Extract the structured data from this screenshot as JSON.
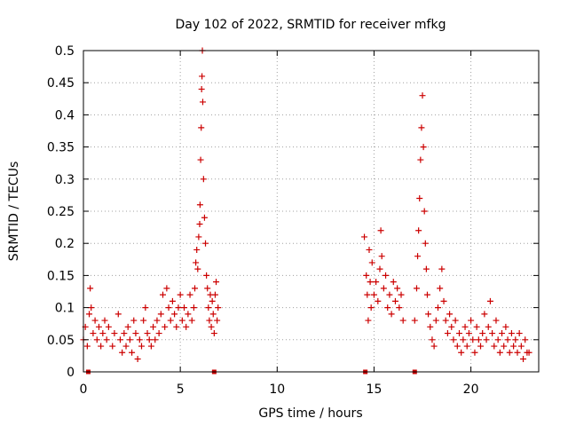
{
  "chart_data": {
    "type": "scatter",
    "title": "Day 102 of 2022, SRMTID for receiver mfkg",
    "xlabel": "GPS time / hours",
    "ylabel": "SRMTID / TECUs",
    "xlim": [
      0,
      23.5
    ],
    "ylim": [
      0,
      0.5
    ],
    "x_ticks": [
      0,
      5,
      10,
      15,
      20
    ],
    "x_tick_labels": [
      "0",
      "5",
      "10",
      "15",
      "20"
    ],
    "y_ticks": [
      0,
      0.05,
      0.1,
      0.15,
      0.2,
      0.25,
      0.3,
      0.35,
      0.4,
      0.45,
      0.5
    ],
    "y_tick_labels": [
      "0",
      "0.05",
      "0.1",
      "0.15",
      "0.2",
      "0.25",
      "0.3",
      "0.35",
      "0.4",
      "0.45",
      "0.5"
    ],
    "grid": true,
    "marker": "plus",
    "color": "#cc0000",
    "series": [
      {
        "name": "SRMTID",
        "points": [
          [
            0.0,
            0.05
          ],
          [
            0.1,
            0.07
          ],
          [
            0.2,
            0.04
          ],
          [
            0.3,
            0.09
          ],
          [
            0.35,
            0.13
          ],
          [
            0.4,
            0.1
          ],
          [
            0.5,
            0.06
          ],
          [
            0.6,
            0.08
          ],
          [
            0.7,
            0.05
          ],
          [
            0.8,
            0.07
          ],
          [
            0.9,
            0.04
          ],
          [
            1.0,
            0.06
          ],
          [
            1.1,
            0.08
          ],
          [
            1.2,
            0.05
          ],
          [
            1.3,
            0.07
          ],
          [
            1.5,
            0.04
          ],
          [
            1.6,
            0.06
          ],
          [
            1.8,
            0.09
          ],
          [
            1.9,
            0.05
          ],
          [
            2.0,
            0.03
          ],
          [
            2.1,
            0.06
          ],
          [
            2.2,
            0.04
          ],
          [
            2.3,
            0.07
          ],
          [
            2.4,
            0.05
          ],
          [
            2.5,
            0.03
          ],
          [
            2.6,
            0.08
          ],
          [
            2.7,
            0.06
          ],
          [
            2.8,
            0.02
          ],
          [
            2.9,
            0.05
          ],
          [
            3.0,
            0.04
          ],
          [
            3.1,
            0.08
          ],
          [
            3.2,
            0.1
          ],
          [
            3.3,
            0.06
          ],
          [
            3.4,
            0.05
          ],
          [
            3.5,
            0.04
          ],
          [
            3.6,
            0.07
          ],
          [
            3.7,
            0.05
          ],
          [
            3.8,
            0.08
          ],
          [
            3.9,
            0.06
          ],
          [
            4.0,
            0.09
          ],
          [
            4.1,
            0.12
          ],
          [
            4.2,
            0.07
          ],
          [
            4.3,
            0.13
          ],
          [
            4.4,
            0.1
          ],
          [
            4.5,
            0.08
          ],
          [
            4.6,
            0.11
          ],
          [
            4.7,
            0.09
          ],
          [
            4.8,
            0.07
          ],
          [
            4.9,
            0.1
          ],
          [
            5.0,
            0.12
          ],
          [
            5.1,
            0.08
          ],
          [
            5.2,
            0.1
          ],
          [
            5.3,
            0.07
          ],
          [
            5.4,
            0.09
          ],
          [
            5.5,
            0.12
          ],
          [
            5.6,
            0.08
          ],
          [
            5.7,
            0.1
          ],
          [
            5.75,
            0.13
          ],
          [
            5.8,
            0.17
          ],
          [
            5.85,
            0.19
          ],
          [
            5.9,
            0.16
          ],
          [
            5.95,
            0.21
          ],
          [
            6.0,
            0.23
          ],
          [
            6.02,
            0.26
          ],
          [
            6.05,
            0.33
          ],
          [
            6.08,
            0.38
          ],
          [
            6.1,
            0.44
          ],
          [
            6.12,
            0.46
          ],
          [
            6.14,
            0.5
          ],
          [
            6.16,
            0.42
          ],
          [
            6.2,
            0.3
          ],
          [
            6.25,
            0.24
          ],
          [
            6.3,
            0.2
          ],
          [
            6.35,
            0.15
          ],
          [
            6.4,
            0.13
          ],
          [
            6.45,
            0.1
          ],
          [
            6.5,
            0.08
          ],
          [
            6.55,
            0.12
          ],
          [
            6.6,
            0.07
          ],
          [
            6.65,
            0.11
          ],
          [
            6.7,
            0.09
          ],
          [
            6.75,
            0.06
          ],
          [
            6.8,
            0.12
          ],
          [
            6.85,
            0.14
          ],
          [
            6.9,
            0.08
          ],
          [
            6.95,
            0.1
          ],
          [
            14.5,
            0.21
          ],
          [
            14.6,
            0.15
          ],
          [
            14.65,
            0.12
          ],
          [
            14.7,
            0.08
          ],
          [
            14.75,
            0.19
          ],
          [
            14.8,
            0.14
          ],
          [
            14.85,
            0.1
          ],
          [
            14.9,
            0.17
          ],
          [
            15.0,
            0.12
          ],
          [
            15.1,
            0.14
          ],
          [
            15.2,
            0.11
          ],
          [
            15.3,
            0.16
          ],
          [
            15.35,
            0.22
          ],
          [
            15.4,
            0.18
          ],
          [
            15.5,
            0.13
          ],
          [
            15.6,
            0.15
          ],
          [
            15.7,
            0.1
          ],
          [
            15.8,
            0.12
          ],
          [
            15.9,
            0.09
          ],
          [
            16.0,
            0.14
          ],
          [
            16.1,
            0.11
          ],
          [
            16.2,
            0.13
          ],
          [
            16.3,
            0.1
          ],
          [
            16.4,
            0.12
          ],
          [
            16.5,
            0.08
          ],
          [
            17.1,
            0.08
          ],
          [
            17.2,
            0.13
          ],
          [
            17.25,
            0.18
          ],
          [
            17.3,
            0.22
          ],
          [
            17.35,
            0.27
          ],
          [
            17.4,
            0.33
          ],
          [
            17.45,
            0.38
          ],
          [
            17.5,
            0.43
          ],
          [
            17.55,
            0.35
          ],
          [
            17.6,
            0.25
          ],
          [
            17.65,
            0.2
          ],
          [
            17.7,
            0.16
          ],
          [
            17.75,
            0.12
          ],
          [
            17.8,
            0.09
          ],
          [
            17.9,
            0.07
          ],
          [
            18.0,
            0.05
          ],
          [
            18.1,
            0.04
          ],
          [
            18.2,
            0.08
          ],
          [
            18.3,
            0.1
          ],
          [
            18.4,
            0.13
          ],
          [
            18.5,
            0.16
          ],
          [
            18.6,
            0.11
          ],
          [
            18.7,
            0.08
          ],
          [
            18.8,
            0.06
          ],
          [
            18.9,
            0.09
          ],
          [
            19.0,
            0.07
          ],
          [
            19.1,
            0.05
          ],
          [
            19.2,
            0.08
          ],
          [
            19.3,
            0.04
          ],
          [
            19.4,
            0.06
          ],
          [
            19.5,
            0.03
          ],
          [
            19.6,
            0.05
          ],
          [
            19.7,
            0.07
          ],
          [
            19.8,
            0.04
          ],
          [
            19.9,
            0.06
          ],
          [
            20.0,
            0.08
          ],
          [
            20.1,
            0.05
          ],
          [
            20.2,
            0.03
          ],
          [
            20.3,
            0.07
          ],
          [
            20.4,
            0.05
          ],
          [
            20.5,
            0.04
          ],
          [
            20.6,
            0.06
          ],
          [
            20.7,
            0.09
          ],
          [
            20.8,
            0.05
          ],
          [
            20.9,
            0.07
          ],
          [
            21.0,
            0.11
          ],
          [
            21.1,
            0.06
          ],
          [
            21.2,
            0.04
          ],
          [
            21.3,
            0.08
          ],
          [
            21.4,
            0.05
          ],
          [
            21.5,
            0.03
          ],
          [
            21.6,
            0.06
          ],
          [
            21.7,
            0.04
          ],
          [
            21.8,
            0.07
          ],
          [
            21.9,
            0.05
          ],
          [
            22.0,
            0.03
          ],
          [
            22.1,
            0.06
          ],
          [
            22.2,
            0.04
          ],
          [
            22.3,
            0.05
          ],
          [
            22.4,
            0.03
          ],
          [
            22.5,
            0.06
          ],
          [
            22.6,
            0.04
          ],
          [
            22.7,
            0.02
          ],
          [
            22.8,
            0.05
          ],
          [
            22.9,
            0.03
          ],
          [
            23.0,
            0.03
          ]
        ],
        "zero_points": [
          0.25,
          6.75,
          14.55,
          17.1
        ]
      }
    ]
  }
}
